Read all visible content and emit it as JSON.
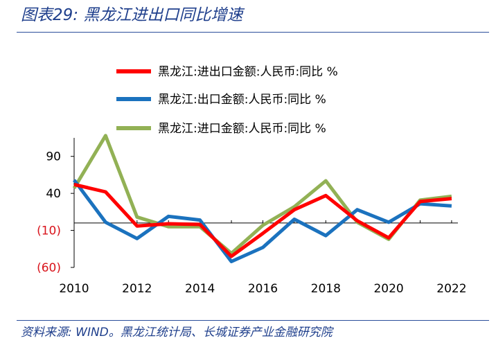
{
  "header": {
    "title": "图表29:  黑龙江进出口同比增速"
  },
  "footer": {
    "source": "资料来源:  WIND。黑龙江统计局、长城证券产业金融研究院"
  },
  "colors": {
    "title": "#1f3f8c",
    "rule": "#2a4d9a",
    "negative_tick": "#d9141c"
  },
  "chart_data": {
    "type": "line",
    "title": "",
    "xlabel": "",
    "ylabel": "",
    "x": [
      2010,
      2011,
      2012,
      2013,
      2014,
      2015,
      2016,
      2017,
      2018,
      2019,
      2020,
      2021,
      2022
    ],
    "xlim": [
      2010,
      2022.2
    ],
    "ylim": [
      -60,
      115
    ],
    "yticks": [
      90,
      40,
      -10,
      -60
    ],
    "ytick_labels": [
      "90",
      "40",
      "(10)",
      "(60)"
    ],
    "xticks": [
      2010,
      2012,
      2014,
      2016,
      2018,
      2020,
      2022
    ],
    "xtick_labels": [
      "2010",
      "2012",
      "2014",
      "2016",
      "2018",
      "2020",
      "2022"
    ],
    "legend_position": "top-center",
    "series": [
      {
        "name": "黑龙江:进出口金额:人民币:同比 %",
        "color": "#ff0000",
        "values": [
          52,
          42,
          -4,
          -1,
          -2,
          -45,
          -14,
          18,
          37,
          3,
          -20,
          29,
          33
        ]
      },
      {
        "name": "黑龙江:出口金额:人民币:同比 %",
        "color": "#1b72be",
        "values": [
          58,
          1,
          -21,
          9,
          4,
          -52,
          -33,
          5,
          -17,
          18,
          1,
          26,
          23
        ]
      },
      {
        "name": "黑龙江:进口金额:人民币:同比 %",
        "color": "#92b155",
        "values": [
          47,
          118,
          8,
          -5,
          -5,
          -41,
          -3,
          22,
          57,
          1,
          -22,
          31,
          36
        ]
      }
    ]
  }
}
